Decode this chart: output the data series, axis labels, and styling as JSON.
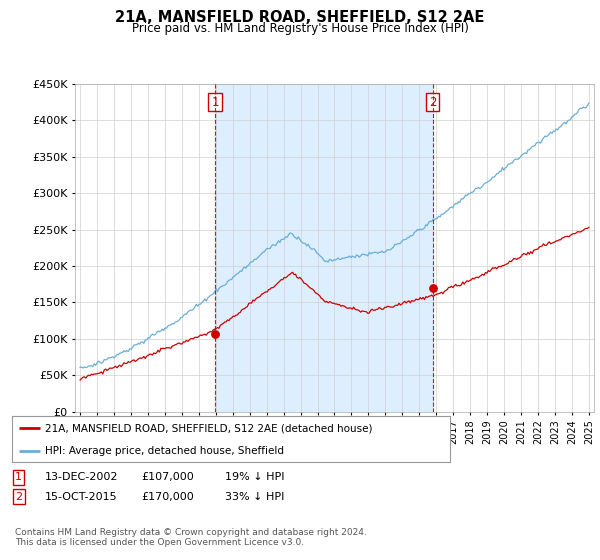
{
  "title": "21A, MANSFIELD ROAD, SHEFFIELD, S12 2AE",
  "subtitle": "Price paid vs. HM Land Registry's House Price Index (HPI)",
  "ylim": [
    0,
    450000
  ],
  "yticks": [
    0,
    50000,
    100000,
    150000,
    200000,
    250000,
    300000,
    350000,
    400000,
    450000
  ],
  "hpi_color": "#6baed6",
  "price_color": "#cc0000",
  "vline_color": "#cc0000",
  "transaction1": {
    "date_label": "13-DEC-2002",
    "price": 107000,
    "pct": "19% ↓ HPI",
    "year": 2002.96
  },
  "transaction2": {
    "date_label": "15-OCT-2015",
    "price": 170000,
    "pct": "33% ↓ HPI",
    "year": 2015.79
  },
  "legend_line1": "21A, MANSFIELD ROAD, SHEFFIELD, S12 2AE (detached house)",
  "legend_line2": "HPI: Average price, detached house, Sheffield",
  "footer": "Contains HM Land Registry data © Crown copyright and database right 2024.\nThis data is licensed under the Open Government Licence v3.0.",
  "background_color": "#ffffff",
  "grid_color": "#d0d0d0",
  "fill_color": "#ddeeff",
  "xlim_start": 1994.7,
  "xlim_end": 2025.3
}
